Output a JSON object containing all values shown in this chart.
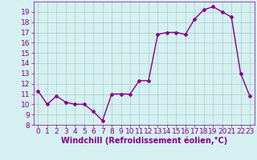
{
  "x": [
    0,
    1,
    2,
    3,
    4,
    5,
    6,
    7,
    8,
    9,
    10,
    11,
    12,
    13,
    14,
    15,
    16,
    17,
    18,
    19,
    20,
    21,
    22,
    23
  ],
  "y": [
    11.3,
    10.0,
    10.8,
    10.2,
    10.0,
    10.0,
    9.3,
    8.4,
    11.0,
    11.0,
    11.0,
    12.3,
    12.3,
    16.8,
    17.0,
    17.0,
    16.8,
    18.3,
    19.2,
    19.5,
    19.0,
    18.5,
    13.0,
    10.8
  ],
  "line_color": "#880088",
  "marker": "D",
  "marker_size": 2.0,
  "bg_color": "#d5f0f0",
  "grid_color": "#aacccc",
  "xlabel": "Windchill (Refroidissement éolien,°C)",
  "xlim": [
    -0.5,
    23.5
  ],
  "ylim": [
    8,
    20
  ],
  "yticks": [
    8,
    9,
    10,
    11,
    12,
    13,
    14,
    15,
    16,
    17,
    18,
    19
  ],
  "xticks": [
    0,
    1,
    2,
    3,
    4,
    5,
    6,
    7,
    8,
    9,
    10,
    11,
    12,
    13,
    14,
    15,
    16,
    17,
    18,
    19,
    20,
    21,
    22,
    23
  ],
  "tick_fontsize": 6.5,
  "xlabel_fontsize": 7.0,
  "line_width": 1.0
}
